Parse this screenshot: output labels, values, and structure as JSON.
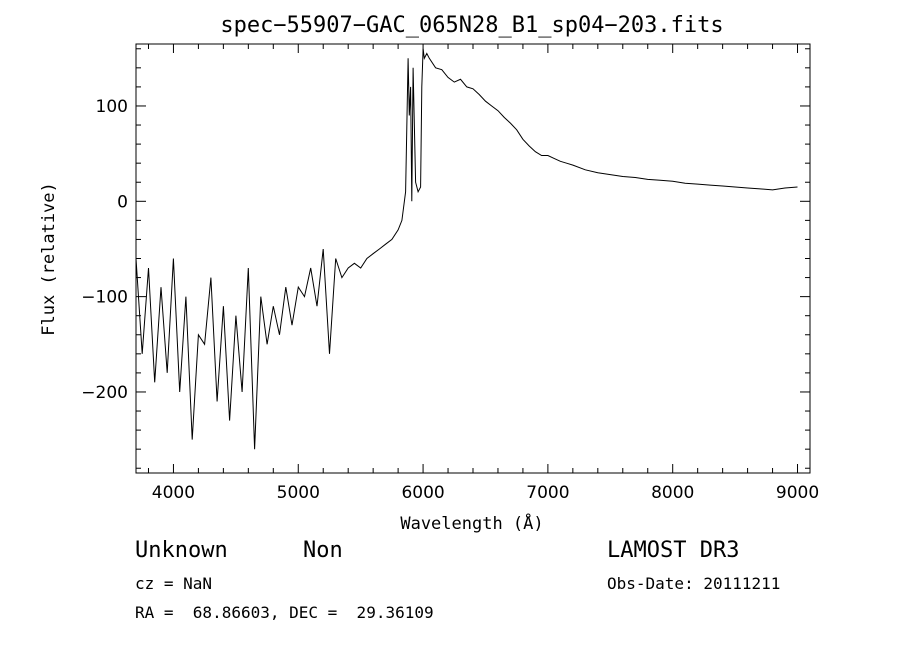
{
  "chart_data": {
    "type": "line",
    "title": "spec−55907−GAC_065N28_B1_sp04−203.fits",
    "xlabel": "Wavelength (Å)",
    "ylabel": "Flux (relative)",
    "xlim": [
      3700,
      9100
    ],
    "ylim": [
      -285,
      165
    ],
    "xticks": [
      4000,
      5000,
      6000,
      7000,
      8000,
      9000
    ],
    "xtick_labels": [
      "4000",
      "5000",
      "6000",
      "7000",
      "8000",
      "9000"
    ],
    "yticks": [
      -200,
      -100,
      0,
      100
    ],
    "ytick_labels": [
      "−200",
      "−100",
      "0",
      "100"
    ],
    "grid": false,
    "series": [
      {
        "x": [
          3700,
          3750,
          3800,
          3850,
          3900,
          3950,
          4000,
          4050,
          4100,
          4150,
          4200,
          4250,
          4300,
          4350,
          4400,
          4450,
          4500,
          4550,
          4600,
          4650,
          4700,
          4750,
          4800,
          4850,
          4900,
          4950,
          5000,
          5050,
          5100,
          5150,
          5200,
          5250,
          5300,
          5350,
          5400,
          5450,
          5500,
          5550,
          5600,
          5650,
          5700,
          5750,
          5800,
          5830,
          5860,
          5880,
          5890,
          5900,
          5910,
          5920,
          5940,
          5960,
          5980,
          5990,
          6000,
          6010,
          6030,
          6050,
          6100,
          6150,
          6200,
          6250,
          6300,
          6350,
          6400,
          6450,
          6500,
          6550,
          6600,
          6650,
          6700,
          6750,
          6800,
          6850,
          6900,
          6950,
          7000,
          7050,
          7100,
          7150,
          7200,
          7300,
          7400,
          7500,
          7600,
          7700,
          7800,
          7900,
          8000,
          8100,
          8200,
          8300,
          8400,
          8500,
          8600,
          8700,
          8800,
          8900,
          9000
        ],
        "y": [
          -60,
          -160,
          -70,
          -190,
          -90,
          -180,
          -60,
          -200,
          -100,
          -250,
          -140,
          -150,
          -80,
          -210,
          -110,
          -230,
          -120,
          -200,
          -70,
          -260,
          -100,
          -150,
          -110,
          -140,
          -90,
          -130,
          -90,
          -100,
          -70,
          -110,
          -50,
          -160,
          -60,
          -80,
          -70,
          -65,
          -70,
          -60,
          -55,
          -50,
          -45,
          -40,
          -30,
          -20,
          10,
          150,
          90,
          120,
          0,
          140,
          20,
          10,
          15,
          120,
          160,
          150,
          155,
          150,
          140,
          138,
          130,
          125,
          128,
          120,
          118,
          112,
          105,
          100,
          95,
          88,
          82,
          75,
          65,
          58,
          52,
          48,
          48,
          45,
          42,
          40,
          38,
          33,
          30,
          28,
          26,
          25,
          23,
          22,
          21,
          19,
          18,
          17,
          16,
          15,
          14,
          13,
          12,
          14,
          15
        ]
      }
    ]
  },
  "info": {
    "class_label": "Unknown",
    "subclass_label": "Non",
    "survey": "LAMOST DR3",
    "cz": "cz = NaN",
    "obs_date": "Obs-Date: 20111211",
    "coords": "RA =  68.86603, DEC =  29.36109"
  }
}
